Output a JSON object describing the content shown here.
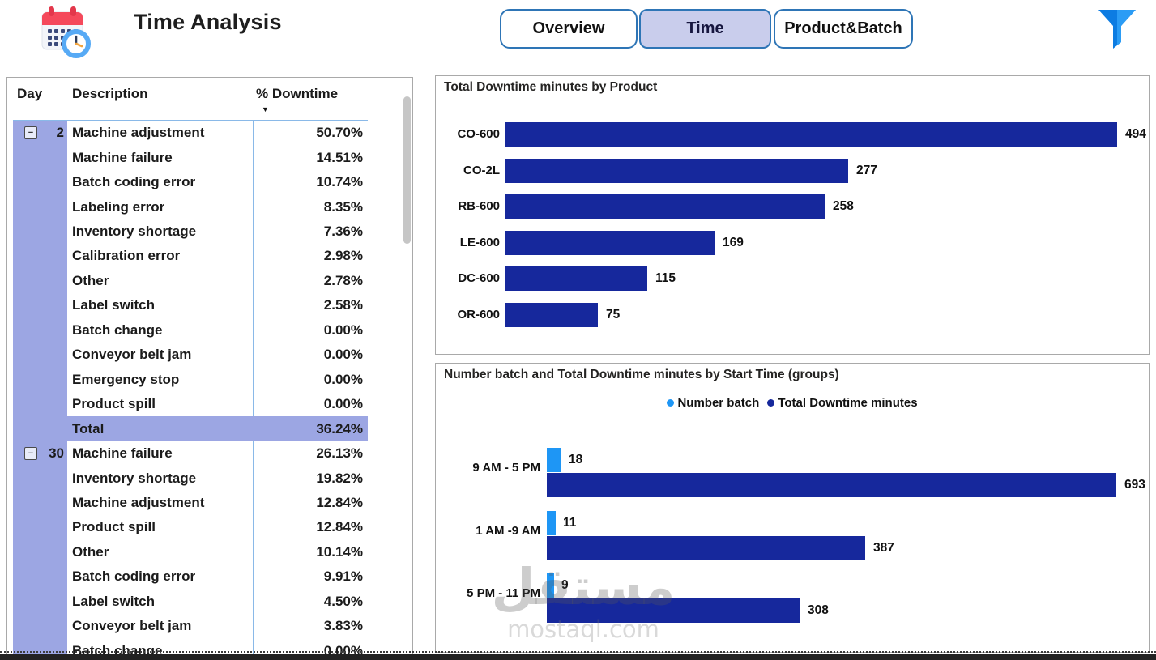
{
  "header": {
    "title": "Time Analysis",
    "calendar_icon": "calendar-clock-icon",
    "filter_icon": "funnel-filter-icon",
    "tabs": [
      {
        "label": "Overview",
        "active": false
      },
      {
        "label": "Time",
        "active": true
      },
      {
        "label": "Product&Batch",
        "active": false
      }
    ]
  },
  "table": {
    "columns": [
      "Day",
      "Description",
      "% Downtime"
    ],
    "sorted_column": "% Downtime",
    "sort_direction": "desc",
    "groups": [
      {
        "day": "2",
        "rows": [
          {
            "description": "Machine adjustment",
            "pct": "50.70%"
          },
          {
            "description": "Machine failure",
            "pct": "14.51%"
          },
          {
            "description": "Batch coding error",
            "pct": "10.74%"
          },
          {
            "description": "Labeling error",
            "pct": "8.35%"
          },
          {
            "description": "Inventory shortage",
            "pct": "7.36%"
          },
          {
            "description": "Calibration error",
            "pct": "2.98%"
          },
          {
            "description": "Other",
            "pct": "2.78%"
          },
          {
            "description": "Label switch",
            "pct": "2.58%"
          },
          {
            "description": "Batch change",
            "pct": "0.00%"
          },
          {
            "description": "Conveyor belt jam",
            "pct": "0.00%"
          },
          {
            "description": "Emergency stop",
            "pct": "0.00%"
          },
          {
            "description": "Product spill",
            "pct": "0.00%"
          },
          {
            "description": "Total",
            "pct": "36.24%",
            "is_total": true
          }
        ]
      },
      {
        "day": "30",
        "rows": [
          {
            "description": "Machine failure",
            "pct": "26.13%"
          },
          {
            "description": "Inventory shortage",
            "pct": "19.82%"
          },
          {
            "description": "Machine adjustment",
            "pct": "12.84%"
          },
          {
            "description": "Product spill",
            "pct": "12.84%"
          },
          {
            "description": "Other",
            "pct": "10.14%"
          },
          {
            "description": "Batch coding error",
            "pct": "9.91%"
          },
          {
            "description": "Label switch",
            "pct": "4.50%"
          },
          {
            "description": "Conveyor belt jam",
            "pct": "3.83%"
          },
          {
            "description": "Batch change",
            "pct": "0.00%"
          }
        ]
      }
    ]
  },
  "chart_data": [
    {
      "type": "bar",
      "orientation": "horizontal",
      "title": "Total Downtime minutes by Product",
      "categories": [
        "CO-600",
        "CO-2L",
        "RB-600",
        "LE-600",
        "DC-600",
        "OR-600"
      ],
      "values": [
        494,
        277,
        258,
        169,
        115,
        75
      ],
      "data_labels": true,
      "bar_color": "#16289C",
      "xlim": [
        0,
        510
      ],
      "grid": false
    },
    {
      "type": "bar",
      "orientation": "horizontal",
      "title": "Number batch and Total Downtime minutes by Start Time (groups)",
      "categories": [
        "9 AM - 5 PM",
        "1 AM -9 AM",
        "5 PM - 11 PM"
      ],
      "series": [
        {
          "name": "Number batch",
          "values": [
            18,
            11,
            9
          ],
          "color": "#1E96F5"
        },
        {
          "name": "Total Downtime minutes",
          "values": [
            693,
            387,
            308
          ],
          "color": "#16289C"
        }
      ],
      "data_labels": true,
      "legend_position": "top-center",
      "xlim": [
        0,
        730
      ],
      "grid": false
    }
  ],
  "watermark": {
    "arabic": "مستقل",
    "domain": "mostaql.com"
  },
  "colors": {
    "dark_blue": "#16289C",
    "light_blue": "#1E96F5",
    "lavender": "#9CA6E3",
    "tab_border": "#2E75B6",
    "tab_active_bg": "#C9CDEC",
    "table_divider_blue": "#8AB9E8"
  }
}
